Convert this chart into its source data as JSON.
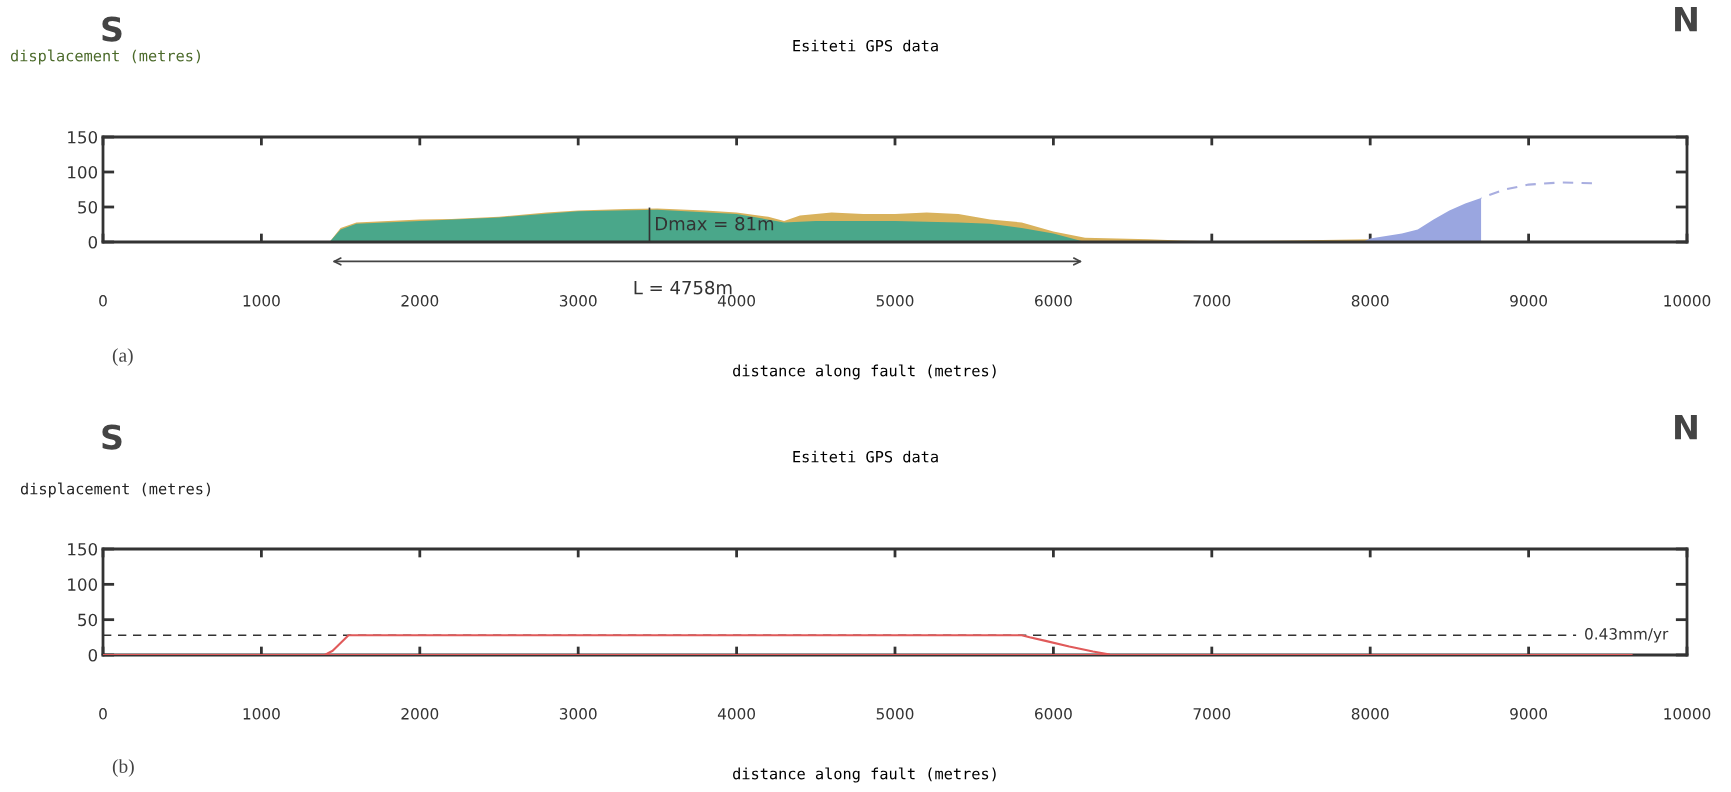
{
  "chart_data": [
    {
      "type": "area",
      "title": "Esiteti GPS data",
      "xlabel": "distance along fault (metres)",
      "ylabel": "displacement (metres)",
      "xlim": [
        0,
        10000
      ],
      "xticks": [
        0,
        1000,
        2000,
        3000,
        4000,
        5000,
        6000,
        7000,
        8000,
        9000,
        10000
      ],
      "ylim": [
        0,
        150
      ],
      "yticks": [
        0,
        50,
        100,
        150
      ],
      "grid": false,
      "series": [
        {
          "color": "#d9b25c",
          "x": [
            1430,
            1500,
            1600,
            1800,
            2000,
            2200,
            2500,
            2800,
            3000,
            3300,
            3500,
            3800,
            4000,
            4200,
            4300,
            4400,
            4600,
            4800,
            5000,
            5200,
            5400,
            5600,
            5800,
            6000,
            6200,
            6400,
            6600,
            6800,
            7000,
            7500,
            8000
          ],
          "values": [
            0,
            20,
            28,
            30,
            32,
            33,
            36,
            42,
            45,
            47,
            48,
            45,
            42,
            36,
            30,
            38,
            42,
            40,
            40,
            42,
            40,
            32,
            28,
            15,
            6,
            5,
            4,
            2,
            1,
            2,
            4
          ]
        },
        {
          "color": "#4aa78a",
          "x": [
            1430,
            1500,
            1600,
            2000,
            2500,
            3000,
            3500,
            4000,
            4300,
            4500,
            4800,
            5000,
            5400,
            5600,
            5800,
            6000,
            6200
          ],
          "values": [
            0,
            18,
            26,
            30,
            35,
            44,
            46,
            40,
            28,
            30,
            30,
            30,
            28,
            26,
            20,
            12,
            0
          ]
        },
        {
          "color": "#9aa6e0",
          "x": [
            7950,
            8000,
            8200,
            8300,
            8400,
            8500,
            8600,
            8700,
            8700
          ],
          "values": [
            0,
            5,
            12,
            18,
            32,
            45,
            55,
            63,
            0
          ]
        },
        {
          "type": "line",
          "line_style": "dashed",
          "color": "#a9aee0",
          "x": [
            8700,
            8850,
            9000,
            9200,
            9400
          ],
          "values": [
            63,
            75,
            82,
            85,
            84
          ]
        }
      ],
      "annotations": [
        "S",
        "N",
        "(a)",
        {
          "text": "Dmax = 81m",
          "x": 3450,
          "y": 48
        },
        {
          "text": "L = 4758m",
          "x": 3450,
          "y": 0
        }
      ]
    },
    {
      "type": "line",
      "title": "Esiteti GPS data",
      "xlabel": "distance along fault (metres)",
      "ylabel": "displacement (metres)",
      "xlim": [
        0,
        10000
      ],
      "xticks": [
        0,
        1000,
        2000,
        3000,
        4000,
        5000,
        6000,
        7000,
        8000,
        9000,
        10000
      ],
      "ylim": [
        0,
        150
      ],
      "yticks": [
        0,
        50,
        100,
        150
      ],
      "grid": false,
      "series": [
        {
          "color": "#e05a5a",
          "x": [
            0,
            9650
          ],
          "values": [
            0,
            0
          ]
        },
        {
          "color": "#e05a5a",
          "x": [
            1400,
            1450,
            1550,
            5800,
            5850,
            5950,
            6100,
            6250,
            6350
          ],
          "values": [
            0,
            6,
            28,
            28,
            25,
            20,
            12,
            5,
            1
          ]
        }
      ],
      "ref_lines": [
        {
          "axis": "y",
          "value": 28,
          "label": "0.43mm/yr",
          "color": "#333333",
          "line_style": "dashed"
        }
      ],
      "annotations": [
        "S",
        "N",
        "(b)"
      ]
    }
  ]
}
